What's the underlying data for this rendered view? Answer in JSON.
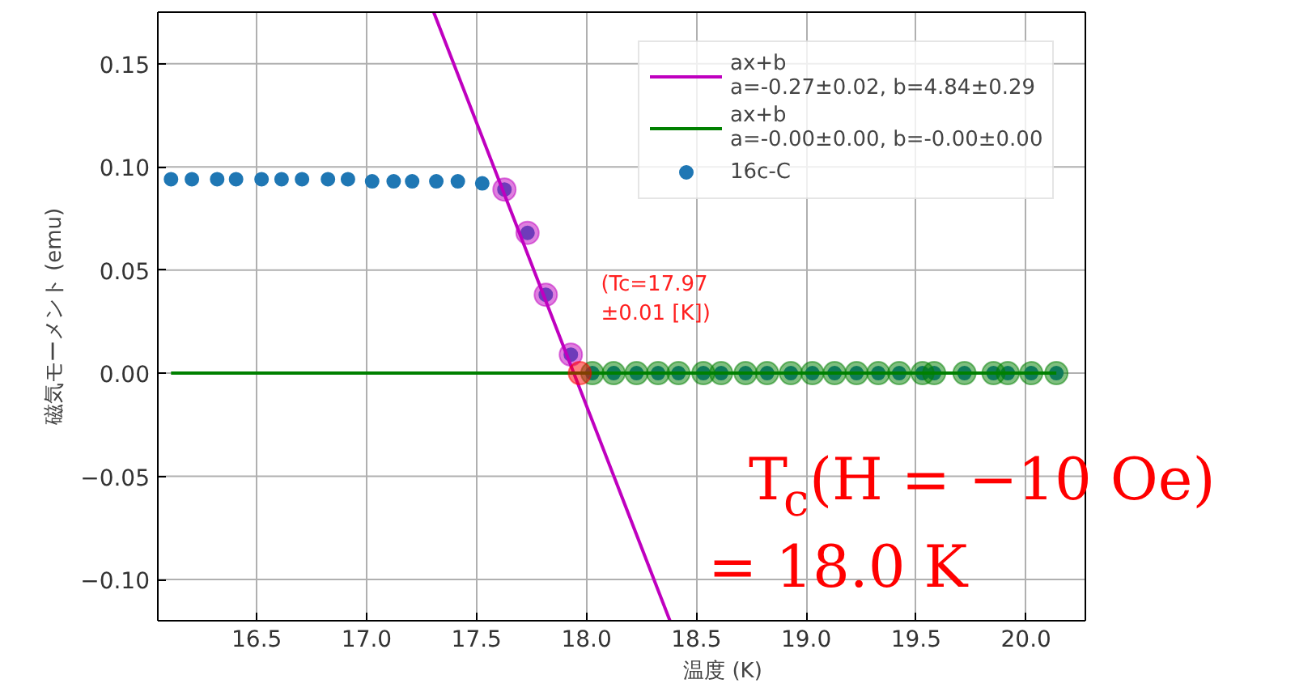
{
  "chart_data": {
    "type": "scatter",
    "xlabel": "温度 (K)",
    "ylabel": "磁気モーメント (emu)",
    "xlim": [
      16.05,
      20.27
    ],
    "ylim": [
      -0.12,
      0.175
    ],
    "xticks": [
      {
        "value": 16.5,
        "label": "16.5"
      },
      {
        "value": 17,
        "label": "17.0"
      },
      {
        "value": 17.5,
        "label": "17.5"
      },
      {
        "value": 18,
        "label": "18.0"
      },
      {
        "value": 18.5,
        "label": "18.5"
      },
      {
        "value": 19,
        "label": "19.0"
      },
      {
        "value": 19.5,
        "label": "19.5"
      },
      {
        "value": 20,
        "label": "20.0"
      }
    ],
    "yticks": [
      {
        "value": -0.1,
        "label": "−0.10"
      },
      {
        "value": -0.05,
        "label": "−0.05"
      },
      {
        "value": 0,
        "label": "0.00"
      },
      {
        "value": 0.05,
        "label": "0.05"
      },
      {
        "value": 0.1,
        "label": "0.10"
      },
      {
        "value": 0.15,
        "label": "0.15"
      }
    ],
    "grid": true,
    "legend": "top right",
    "marker": "circle",
    "series": [
      {
        "name": "16c-C",
        "color": "#1f77b4",
        "x": [
          16.11,
          16.205,
          16.32,
          16.406,
          16.522,
          16.613,
          16.706,
          16.824,
          16.915,
          17.025,
          17.123,
          17.207,
          17.317,
          17.415,
          17.526,
          17.627,
          17.732,
          17.815,
          17.929,
          18.027,
          18.124,
          18.228,
          18.326,
          18.419,
          18.532,
          18.613,
          18.724,
          18.822,
          18.93,
          19.028,
          19.129,
          19.229,
          19.328,
          19.423,
          19.529,
          19.582,
          19.72,
          19.852,
          19.917,
          20.024,
          20.138
        ],
        "values": [
          0.094,
          0.094,
          0.094,
          0.094,
          0.094,
          0.094,
          0.094,
          0.094,
          0.094,
          0.093,
          0.093,
          0.093,
          0.093,
          0.093,
          0.092,
          0.089,
          0.068,
          0.038,
          0.009,
          0,
          0,
          0,
          0,
          0,
          0,
          0,
          0,
          0,
          0,
          0,
          0,
          0,
          0,
          0,
          0,
          0,
          0,
          0,
          0,
          0,
          0
        ]
      },
      {
        "color": "#bf00bf",
        "x": [
          17.627,
          17.732,
          17.815,
          17.929
        ],
        "values": [
          0.089,
          0.068,
          0.038,
          0.009
        ]
      },
      {
        "color": "#008000",
        "x": [
          18.027,
          18.124,
          18.228,
          18.326,
          18.419,
          18.532,
          18.613,
          18.724,
          18.822,
          18.93,
          19.028,
          19.129,
          19.229,
          19.328,
          19.423,
          19.529,
          19.582,
          19.72,
          19.852,
          19.917,
          20.024,
          20.138
        ],
        "values": [
          0,
          0,
          0,
          0,
          0,
          0,
          0,
          0,
          0,
          0,
          0,
          0,
          0,
          0,
          0,
          0,
          0,
          0,
          0,
          0,
          0,
          0
        ]
      },
      {
        "type": "line",
        "marker": "none",
        "name": "ax+b\na=-0.27±0.02, b=4.84±0.29",
        "color": "#bf00bf",
        "x": [
          17.305,
          18.38
        ],
        "values": [
          0.175,
          -0.12
        ]
      },
      {
        "type": "line",
        "marker": "none",
        "name": "ax+b\na=-0.00±0.00, b=-0.00±0.00",
        "color": "#008000",
        "x": [
          16.11,
          20.138
        ],
        "values": [
          0,
          0
        ]
      },
      {
        "color": "#ff0000",
        "x": [
          17.97
        ],
        "values": [
          0
        ]
      }
    ],
    "annotations": [
      {
        "text": "(Tc=17.97\n±0.01 [K])",
        "x": 17.97,
        "y": 0
      },
      "T$_{c}$(H = −10 Oe)\n= 18.0 K"
    ]
  }
}
